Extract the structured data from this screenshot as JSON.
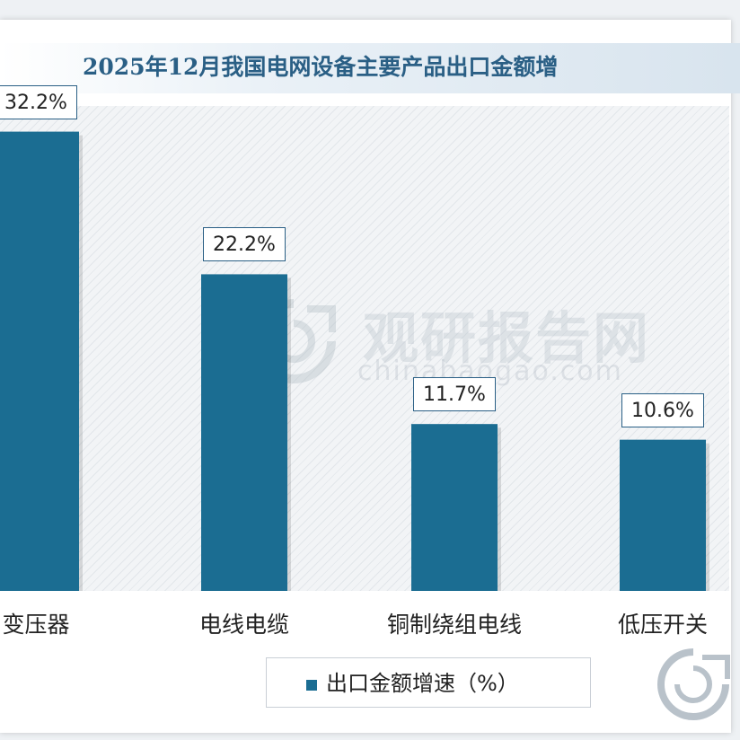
{
  "chart_data": {
    "type": "bar",
    "title": "2025年12月我国电网设备主要产品出口金额增",
    "categories": [
      "变压器",
      "电线电缆",
      "铜制绕组电线",
      "低压开关"
    ],
    "series": [
      {
        "name": "出口金额增速（%）",
        "values": [
          32.2,
          22.2,
          11.7,
          10.6
        ],
        "labels": [
          "32.2%",
          "22.2%",
          "11.7%",
          "10.6%"
        ]
      }
    ],
    "ylim": [
      0,
      34
    ],
    "xlabel": "",
    "ylabel": "",
    "grid": false,
    "legend_position": "bottom",
    "bar_color": "#1b6d92",
    "label_border_color": "#2a5f85"
  },
  "watermark": {
    "brand": "观研报告网",
    "site": "chinabaogao.com"
  }
}
